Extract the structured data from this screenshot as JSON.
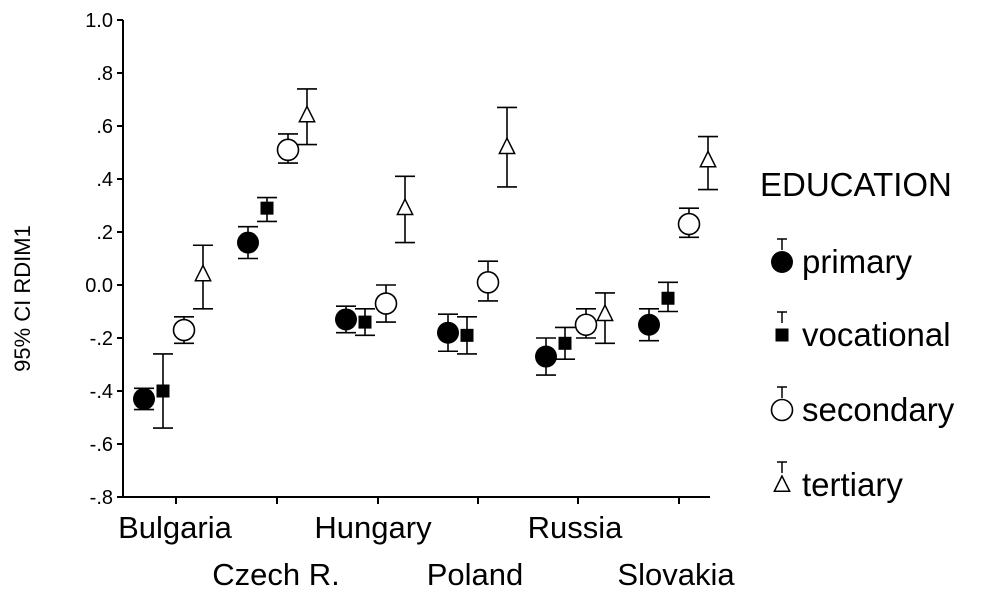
{
  "chart_data": {
    "type": "scatter",
    "title": "",
    "ylabel": "95% CI RDIM1",
    "ylim": [
      -0.8,
      1.0
    ],
    "yticks": [
      -0.8,
      -0.6,
      -0.4,
      -0.2,
      0.0,
      0.2,
      0.4,
      0.6,
      0.8,
      1.0
    ],
    "ytick_labels": [
      "-.8",
      "-.6",
      "-.4",
      "-.2",
      "0.0",
      ".2",
      ".4",
      ".6",
      ".8",
      "1.0"
    ],
    "categories": [
      "Bulgaria",
      "Czech R.",
      "Hungary",
      "Poland",
      "Russia",
      "Slovakia"
    ],
    "legend_title": "EDUCATION",
    "legend_position": "right",
    "series": [
      {
        "name": "primary",
        "marker": "filled-circle",
        "mean": [
          -0.43,
          0.16,
          -0.13,
          -0.18,
          -0.27,
          -0.15
        ],
        "lower": [
          -0.47,
          0.1,
          -0.18,
          -0.25,
          -0.34,
          -0.21
        ],
        "upper": [
          -0.39,
          0.22,
          -0.08,
          -0.11,
          -0.2,
          -0.09
        ]
      },
      {
        "name": "vocational",
        "marker": "filled-square",
        "mean": [
          -0.4,
          0.29,
          -0.14,
          -0.19,
          -0.22,
          -0.05
        ],
        "lower": [
          -0.54,
          0.24,
          -0.19,
          -0.26,
          -0.28,
          -0.1
        ],
        "upper": [
          -0.26,
          0.33,
          -0.09,
          -0.12,
          -0.16,
          0.01
        ]
      },
      {
        "name": "secondary",
        "marker": "open-circle",
        "mean": [
          -0.17,
          0.51,
          -0.07,
          0.01,
          -0.15,
          0.23
        ],
        "lower": [
          -0.22,
          0.46,
          -0.14,
          -0.06,
          -0.2,
          0.18
        ],
        "upper": [
          -0.12,
          0.57,
          0.0,
          0.09,
          -0.09,
          0.29
        ]
      },
      {
        "name": "tertiary",
        "marker": "open-triangle",
        "mean": [
          0.04,
          0.64,
          0.29,
          0.52,
          -0.11,
          0.47
        ],
        "lower": [
          -0.09,
          0.53,
          0.16,
          0.37,
          -0.22,
          0.36
        ],
        "upper": [
          0.15,
          0.74,
          0.41,
          0.67,
          -0.03,
          0.56
        ]
      }
    ]
  }
}
